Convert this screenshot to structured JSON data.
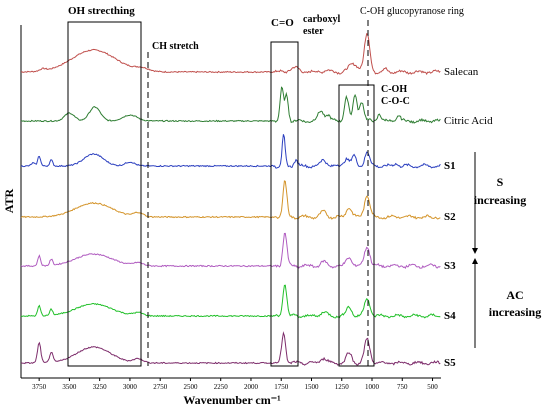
{
  "chart_data": {
    "type": "line",
    "title": "",
    "xlabel": "Wavenumber cm⁻¹",
    "ylabel": "ATR",
    "x_reversed": true,
    "xlim": [
      3900,
      430
    ],
    "x_ticks": [
      3750,
      3500,
      3250,
      3000,
      2750,
      2500,
      2250,
      2000,
      1750,
      1500,
      1250,
      1000,
      750,
      500
    ],
    "grid": false,
    "series": [
      {
        "name": "Salecan",
        "color": "#c0504d",
        "offset": 72,
        "peaks": [
          [
            3720,
            2,
            25
          ],
          [
            3300,
            22,
            180
          ],
          [
            2900,
            3,
            60
          ],
          [
            1640,
            4,
            40
          ],
          [
            1380,
            2,
            25
          ],
          [
            1150,
            8,
            40
          ],
          [
            1040,
            38,
            22
          ],
          [
            890,
            3,
            15
          ]
        ]
      },
      {
        "name": "Citric Acid",
        "color": "#2e7d32",
        "offset": 121,
        "peaks": [
          [
            3500,
            8,
            40
          ],
          [
            3290,
            14,
            45
          ],
          [
            3000,
            6,
            60
          ],
          [
            1745,
            32,
            14
          ],
          [
            1705,
            26,
            14
          ],
          [
            1420,
            10,
            25
          ],
          [
            1360,
            6,
            15
          ],
          [
            1210,
            24,
            18
          ],
          [
            1140,
            26,
            16
          ],
          [
            1085,
            20,
            18
          ],
          [
            940,
            8,
            14
          ],
          [
            780,
            6,
            14
          ]
        ]
      },
      {
        "name": "S1",
        "color": "#2b3fbf",
        "offset": 166,
        "peaks": [
          [
            3800,
            3,
            15
          ],
          [
            3750,
            10,
            12
          ],
          [
            3650,
            6,
            12
          ],
          [
            3300,
            12,
            80
          ],
          [
            3000,
            4,
            40
          ],
          [
            1730,
            30,
            12
          ],
          [
            1630,
            6,
            15
          ],
          [
            1400,
            6,
            25
          ],
          [
            1210,
            8,
            20
          ],
          [
            1150,
            10,
            18
          ],
          [
            1040,
            14,
            20
          ],
          [
            800,
            3,
            15
          ]
        ]
      },
      {
        "name": "S2",
        "color": "#d4942a",
        "offset": 217,
        "peaks": [
          [
            3300,
            14,
            150
          ],
          [
            2930,
            4,
            40
          ],
          [
            1720,
            36,
            16
          ],
          [
            1400,
            5,
            25
          ],
          [
            1190,
            10,
            22
          ],
          [
            1040,
            22,
            22
          ]
        ]
      },
      {
        "name": "S3",
        "color": "#b05cc0",
        "offset": 266,
        "peaks": [
          [
            3750,
            10,
            12
          ],
          [
            3650,
            6,
            12
          ],
          [
            3300,
            12,
            150
          ],
          [
            2930,
            3,
            40
          ],
          [
            1720,
            34,
            16
          ],
          [
            1400,
            4,
            25
          ],
          [
            1190,
            9,
            22
          ],
          [
            1040,
            20,
            22
          ]
        ]
      },
      {
        "name": "S4",
        "color": "#22c02a",
        "offset": 316,
        "peaks": [
          [
            3750,
            10,
            12
          ],
          [
            3650,
            6,
            12
          ],
          [
            3300,
            12,
            150
          ],
          [
            2930,
            3,
            40
          ],
          [
            1720,
            32,
            16
          ],
          [
            1400,
            4,
            25
          ],
          [
            1190,
            9,
            22
          ],
          [
            1040,
            18,
            22
          ]
        ]
      },
      {
        "name": "S5",
        "color": "#7d2c6b",
        "offset": 363,
        "peaks": [
          [
            3750,
            20,
            14
          ],
          [
            3650,
            10,
            14
          ],
          [
            3300,
            16,
            140
          ],
          [
            2930,
            4,
            40
          ],
          [
            1730,
            30,
            16
          ],
          [
            1400,
            5,
            25
          ],
          [
            1190,
            10,
            22
          ],
          [
            1040,
            24,
            22
          ]
        ]
      }
    ]
  },
  "annotations": {
    "oh_stretching": "OH strecthing",
    "ch_stretch": "CH stretch",
    "co_carboxyl": "C=O",
    "carboxyl": "carboxyl",
    "ester": "ester",
    "coh_ring": "C-OH glucopyranose ring",
    "coh": "C-OH",
    "coc": "C-O-C",
    "s_increasing_s": "S",
    "s_increasing_word": "increasing",
    "ac_increasing_ac": "AC",
    "ac_increasing_word": "increasing"
  }
}
